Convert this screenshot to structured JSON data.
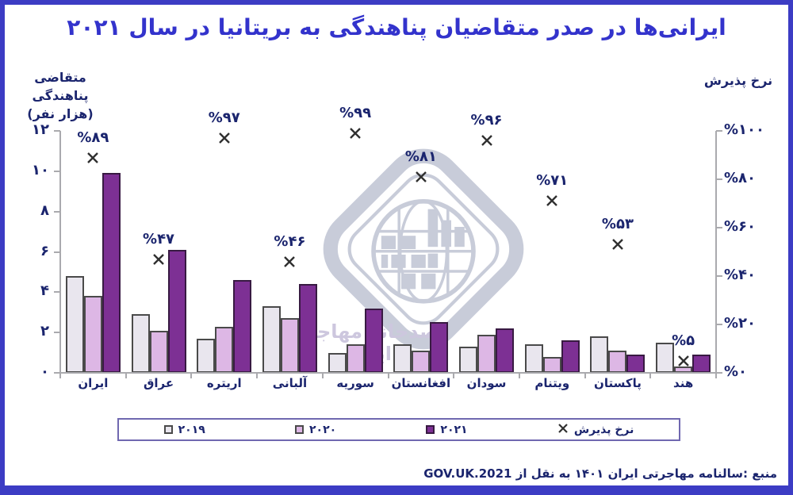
{
  "title": "ایرانی‌ها در صدر متقاضیان پناهندگی به بریتانیا در سال ۲۰۲۱",
  "left_axis_title_line1": "متقاضی پناهندگی",
  "left_axis_title_line2": "(هزار نفر)",
  "right_axis_title": "نرخ پذیرش",
  "watermark_text": "رصدخانه مهاجرت ایران",
  "source": "منبع :سالنامه مهاجرتی ایران ۱۴۰۱ به نقل از GOV.UK.2021",
  "colors": {
    "frame_border": "#3c3cc4",
    "title": "#3333cc",
    "text": "#1b256e",
    "axis_line": "#aaaaae",
    "marker": "#303030",
    "legend_border": "#7068b0",
    "watermark": "#c8ccd9",
    "watermark_text": "#cdc7de"
  },
  "legend": {
    "items": [
      {
        "id": "2019",
        "label": "۲۰۱۹",
        "marker": "square"
      },
      {
        "id": "2020",
        "label": "۲۰۲۰",
        "marker": "square"
      },
      {
        "id": "2021",
        "label": "۲۰۲۱",
        "marker": "square"
      },
      {
        "id": "rate",
        "label": "نرخ پذیرش",
        "marker": "x"
      }
    ]
  },
  "chart_data": {
    "type": "bar",
    "title": "ایرانی‌ها در صدر متقاضیان پناهندگی به بریتانیا در سال ۲۰۲۱",
    "categories": [
      {
        "label": "ایران",
        "slug": "iran"
      },
      {
        "label": "عراق",
        "slug": "iraq"
      },
      {
        "label": "اریتره",
        "slug": "eritrea"
      },
      {
        "label": "آلبانی",
        "slug": "albania"
      },
      {
        "label": "سوریه",
        "slug": "syria"
      },
      {
        "label": "افغانستان",
        "slug": "afghanistan"
      },
      {
        "label": "سودان",
        "slug": "sudan"
      },
      {
        "label": "ویتنام",
        "slug": "vietnam"
      },
      {
        "label": "پاکستان",
        "slug": "pakistan"
      },
      {
        "label": "هند",
        "slug": "india"
      }
    ],
    "series": [
      {
        "id": "2019",
        "label": "۲۰۱۹",
        "color": "#e9e6ee",
        "border": "#4a4a4a",
        "values": [
          4.8,
          2.9,
          1.7,
          3.3,
          1.0,
          1.4,
          1.3,
          1.4,
          1.8,
          1.5
        ]
      },
      {
        "id": "2020",
        "label": "۲۰۲۰",
        "color": "#ddb7e5",
        "border": "#4a4a4a",
        "values": [
          3.8,
          2.1,
          2.3,
          2.7,
          1.4,
          1.1,
          1.9,
          0.8,
          1.1,
          0.3
        ]
      },
      {
        "id": "2021",
        "label": "۲۰۲۱",
        "color": "#7d3094",
        "border": "#381a42",
        "values": [
          9.9,
          6.1,
          4.6,
          4.4,
          3.2,
          2.5,
          2.2,
          1.6,
          0.9,
          0.9
        ]
      }
    ],
    "acceptance_rate": {
      "label": "نرخ پذیرش",
      "values": [
        89,
        47,
        97,
        46,
        99,
        81,
        96,
        71,
        53,
        5
      ],
      "labels": [
        "%۸۹",
        "%۴۷",
        "%۹۷",
        "%۴۶",
        "%۹۹",
        "%۸۱",
        "%۹۶",
        "%۷۱",
        "%۵۳",
        "%۵"
      ]
    },
    "left_axis": {
      "range": [
        0,
        12
      ],
      "ticks": [
        {
          "value": 0,
          "label": "۰"
        },
        {
          "value": 2,
          "label": "۲"
        },
        {
          "value": 4,
          "label": "۴"
        },
        {
          "value": 6,
          "label": "۶"
        },
        {
          "value": 8,
          "label": "۸"
        },
        {
          "value": 10,
          "label": "۱۰"
        },
        {
          "value": 12,
          "label": "۱۲"
        }
      ]
    },
    "right_axis": {
      "range": [
        0,
        100
      ],
      "ticks": [
        {
          "value": 0,
          "label": "%۰"
        },
        {
          "value": 20,
          "label": "%۲۰"
        },
        {
          "value": 40,
          "label": "%۴۰"
        },
        {
          "value": 60,
          "label": "%۶۰"
        },
        {
          "value": 80,
          "label": "%۸۰"
        },
        {
          "value": 100,
          "label": "%۱۰۰"
        }
      ]
    },
    "grid": false,
    "legend_position": "bottom"
  }
}
